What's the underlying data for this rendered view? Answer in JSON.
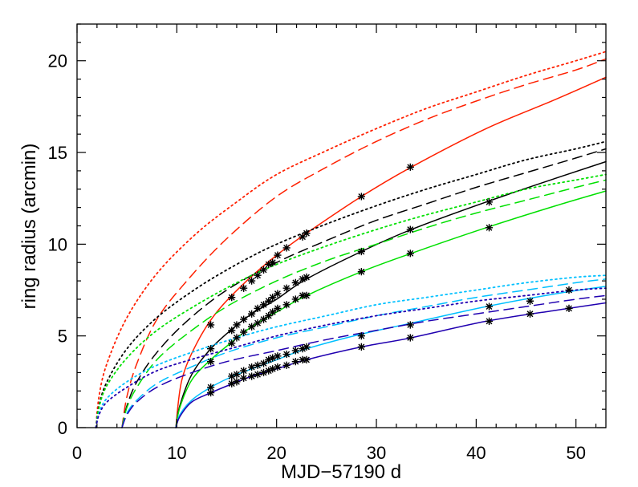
{
  "chart_data": {
    "type": "line",
    "title": "",
    "xlabel": "MJD−57190 d",
    "ylabel": "ring radius (arcmin)",
    "xlim": [
      0,
      53
    ],
    "ylim": [
      0,
      22
    ],
    "xticks": [
      0,
      10,
      20,
      30,
      40,
      50
    ],
    "yticks": [
      0,
      5,
      10,
      15,
      20
    ],
    "xtick_labels": [
      "0",
      "10",
      "20",
      "30",
      "40",
      "50"
    ],
    "ytick_labels": [
      "0",
      "5",
      "10",
      "15",
      "20"
    ],
    "grid": false,
    "legend": "none",
    "model_curves": [
      {
        "color": "#ff2000",
        "style": "solid",
        "x": [
          9.9,
          10.5,
          12,
          14,
          17,
          20,
          23,
          28.5,
          33.5,
          41,
          48,
          53
        ],
        "y": [
          0,
          2.6,
          4.6,
          6.3,
          8.0,
          9.4,
          10.6,
          12.6,
          14.2,
          16.3,
          17.9,
          19.1
        ]
      },
      {
        "color": "#ff2000",
        "style": "dashed",
        "x": [
          4.5,
          5,
          6,
          8,
          11,
          15,
          20,
          25,
          30,
          35,
          40,
          45,
          50,
          53
        ],
        "y": [
          0,
          1.7,
          3.5,
          5.9,
          8.0,
          10.3,
          12.6,
          14.2,
          15.6,
          16.8,
          17.8,
          18.7,
          19.5,
          20.1
        ]
      },
      {
        "color": "#ff2000",
        "style": "dotted",
        "x": [
          1.9,
          2.2,
          3,
          5,
          8,
          12,
          16,
          20,
          25,
          30,
          35,
          40,
          45,
          50,
          53
        ],
        "y": [
          0,
          1.7,
          3.5,
          6.0,
          8.4,
          10.6,
          12.3,
          13.8,
          15.1,
          16.3,
          17.4,
          18.3,
          19.2,
          20.0,
          20.5
        ]
      },
      {
        "color": "#000000",
        "style": "solid",
        "x": [
          9.9,
          10.3,
          11.5,
          13.4,
          15.6,
          17.5,
          20,
          23,
          28.5,
          33.5,
          41,
          48,
          53
        ],
        "y": [
          0,
          1.2,
          2.9,
          4.3,
          5.4,
          6.2,
          7.0,
          8.1,
          9.6,
          10.8,
          12.3,
          13.6,
          14.5
        ]
      },
      {
        "color": "#000000",
        "style": "dashed",
        "x": [
          4.5,
          5,
          6,
          8,
          11,
          15,
          20,
          25,
          30,
          35,
          40,
          45,
          50,
          53
        ],
        "y": [
          0,
          1.2,
          2.5,
          4.1,
          5.8,
          7.5,
          9.0,
          10.2,
          11.3,
          12.2,
          13.1,
          13.9,
          14.7,
          15.2
        ]
      },
      {
        "color": "#000000",
        "style": "dotted",
        "x": [
          1.9,
          2.2,
          3,
          5,
          8,
          12,
          16,
          20,
          25,
          30,
          35,
          40,
          45,
          50,
          53
        ],
        "y": [
          0,
          1.2,
          2.5,
          4.3,
          6.0,
          7.6,
          8.9,
          10.0,
          11.1,
          12.1,
          13.0,
          13.8,
          14.6,
          15.2,
          15.6
        ]
      },
      {
        "color": "#00e000",
        "style": "solid",
        "x": [
          9.9,
          10.3,
          11.5,
          13.4,
          15.6,
          17.5,
          20,
          23,
          28.5,
          33.5,
          41,
          48,
          53
        ],
        "y": [
          0,
          1.1,
          2.6,
          3.7,
          4.7,
          5.5,
          6.3,
          7.2,
          8.5,
          9.5,
          10.9,
          12.1,
          12.9
        ]
      },
      {
        "color": "#00e000",
        "style": "dashed",
        "x": [
          4.5,
          5,
          6,
          8,
          11,
          15,
          20,
          25,
          30,
          35,
          40,
          45,
          50,
          53
        ],
        "y": [
          0,
          1.1,
          2.2,
          3.7,
          5.1,
          6.6,
          8.0,
          9.1,
          10.0,
          10.9,
          11.7,
          12.4,
          13.1,
          13.5
        ]
      },
      {
        "color": "#00e000",
        "style": "dotted",
        "x": [
          1.9,
          2.2,
          3,
          5,
          8,
          12,
          16,
          20,
          25,
          30,
          35,
          40,
          45,
          50,
          53
        ],
        "y": [
          0,
          1.1,
          2.3,
          3.8,
          5.3,
          6.7,
          7.9,
          8.9,
          9.9,
          10.8,
          11.6,
          12.3,
          13.0,
          13.5,
          13.8
        ]
      },
      {
        "color": "#00c0ff",
        "style": "solid",
        "x": [
          9.9,
          10.3,
          11.5,
          13.4,
          15.6,
          17.5,
          20,
          23,
          28.5,
          33.5,
          41,
          48,
          53
        ],
        "y": [
          0,
          0.7,
          1.5,
          2.2,
          2.8,
          3.2,
          3.7,
          4.3,
          5.1,
          5.7,
          6.6,
          7.3,
          7.7
        ]
      },
      {
        "color": "#00c0ff",
        "style": "dashed",
        "x": [
          4.5,
          5,
          6,
          8,
          11,
          15,
          20,
          25,
          30,
          35,
          40,
          45,
          50,
          53
        ],
        "y": [
          0,
          0.8,
          1.5,
          2.4,
          3.2,
          4.1,
          4.9,
          5.5,
          6.1,
          6.6,
          7.1,
          7.5,
          7.9,
          8.1
        ]
      },
      {
        "color": "#00c0ff",
        "style": "dotted",
        "x": [
          1.9,
          2.2,
          3,
          5,
          8,
          12,
          16,
          20,
          25,
          30,
          35,
          40,
          45,
          50,
          53
        ],
        "y": [
          0,
          0.8,
          1.6,
          2.5,
          3.4,
          4.2,
          4.9,
          5.5,
          6.1,
          6.7,
          7.1,
          7.5,
          7.9,
          8.2,
          8.3
        ]
      },
      {
        "color": "#2000b0",
        "style": "solid",
        "x": [
          9.9,
          10.3,
          11.5,
          13.4,
          15.6,
          17.5,
          20,
          23,
          28.5,
          33.5,
          41,
          48,
          53
        ],
        "y": [
          0,
          0.6,
          1.4,
          1.9,
          2.4,
          2.8,
          3.2,
          3.7,
          4.4,
          4.9,
          5.8,
          6.4,
          6.8
        ]
      },
      {
        "color": "#2000b0",
        "style": "dashed",
        "x": [
          4.5,
          5,
          6,
          8,
          11,
          15,
          20,
          25,
          30,
          35,
          40,
          45,
          50,
          53
        ],
        "y": [
          0,
          0.7,
          1.4,
          2.2,
          2.9,
          3.6,
          4.2,
          4.8,
          5.3,
          5.8,
          6.2,
          6.6,
          7.0,
          7.2
        ]
      },
      {
        "color": "#2000b0",
        "style": "dotted",
        "x": [
          1.9,
          2.2,
          3,
          5,
          8,
          12,
          16,
          20,
          25,
          30,
          35,
          40,
          45,
          50,
          53
        ],
        "y": [
          0,
          0.7,
          1.4,
          2.2,
          3.1,
          3.8,
          4.4,
          5.0,
          5.6,
          6.1,
          6.5,
          6.9,
          7.2,
          7.5,
          7.6
        ]
      }
    ],
    "observations": [
      {
        "color": "#ff2000",
        "x": [
          13.4,
          15.5,
          16.7,
          17.5,
          18.1,
          18.7,
          19.2,
          19.6,
          20.1,
          21.0,
          22.6,
          23.0,
          28.5,
          33.4
        ],
        "y": [
          5.6,
          7.1,
          7.6,
          8.0,
          8.3,
          8.6,
          8.9,
          9.0,
          9.4,
          9.8,
          10.4,
          10.6,
          12.6,
          14.2
        ]
      },
      {
        "color": "#000000",
        "x": [
          13.4,
          15.5,
          16.0,
          16.7,
          17.5,
          18.1,
          18.7,
          19.2,
          19.6,
          20.1,
          21.0,
          21.9,
          22.6,
          23.0,
          28.5,
          33.4,
          41.3
        ],
        "y": [
          4.3,
          5.3,
          5.6,
          5.9,
          6.2,
          6.5,
          6.7,
          6.9,
          7.1,
          7.3,
          7.6,
          7.9,
          8.1,
          8.2,
          9.6,
          10.8,
          12.3
        ]
      },
      {
        "color": "#00e000",
        "x": [
          13.4,
          15.5,
          16.0,
          16.7,
          17.5,
          18.1,
          18.7,
          19.2,
          19.6,
          20.1,
          21.0,
          21.9,
          22.6,
          23.0,
          28.5,
          33.4,
          41.3
        ],
        "y": [
          3.6,
          4.6,
          4.9,
          5.2,
          5.5,
          5.7,
          5.9,
          6.1,
          6.3,
          6.5,
          6.7,
          7.0,
          7.2,
          7.2,
          8.5,
          9.5,
          10.9
        ]
      },
      {
        "color": "#00c0ff",
        "x": [
          13.4,
          15.5,
          16.0,
          16.7,
          17.5,
          18.1,
          18.7,
          19.2,
          19.6,
          20.1,
          21.0,
          21.9,
          22.6,
          23.0,
          28.5,
          33.4,
          41.3,
          45.4,
          49.3
        ],
        "y": [
          2.2,
          2.8,
          2.9,
          3.1,
          3.3,
          3.4,
          3.5,
          3.7,
          3.8,
          3.9,
          4.0,
          4.2,
          4.3,
          4.4,
          5.0,
          5.6,
          6.6,
          6.9,
          7.5
        ]
      },
      {
        "color": "#2000b0",
        "x": [
          13.4,
          15.5,
          16.0,
          16.7,
          17.5,
          18.1,
          18.7,
          19.2,
          19.6,
          20.1,
          21.0,
          21.9,
          22.6,
          23.0,
          28.5,
          33.4,
          41.3,
          45.4,
          49.3
        ],
        "y": [
          1.9,
          2.4,
          2.5,
          2.7,
          2.8,
          2.9,
          3.0,
          3.1,
          3.2,
          3.3,
          3.4,
          3.6,
          3.7,
          3.7,
          4.4,
          4.9,
          5.8,
          6.2,
          6.5
        ]
      }
    ]
  }
}
